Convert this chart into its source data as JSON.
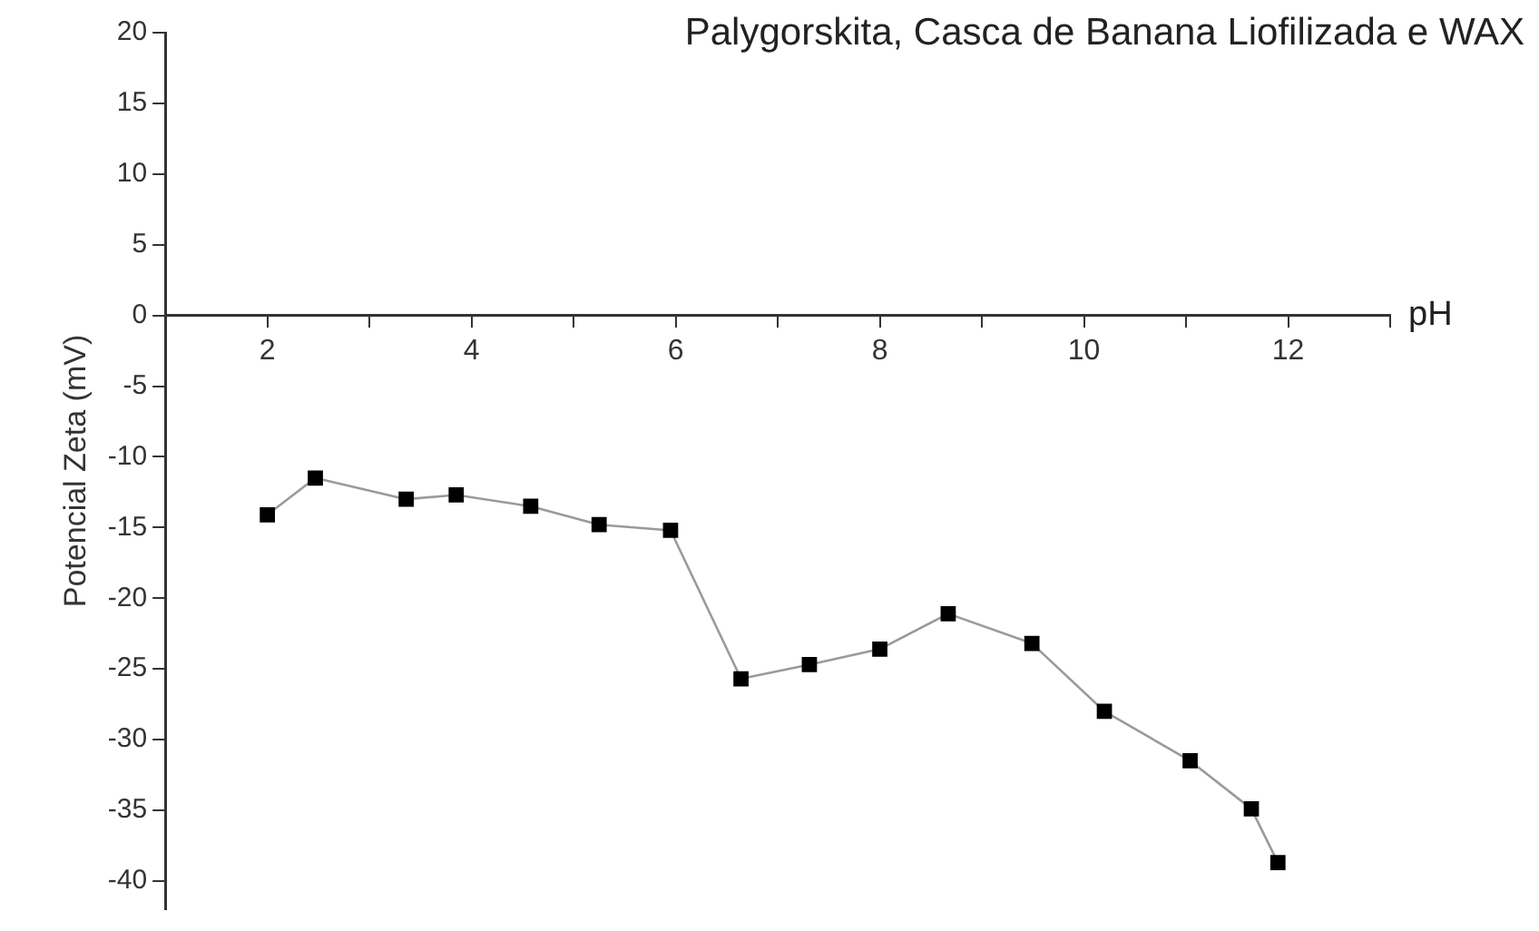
{
  "chart_data": {
    "type": "line",
    "title": "Palygorskita, Casca de Banana Liofilizada e WAX",
    "xlabel": "pH",
    "ylabel": "Potencial Zeta (mV)",
    "x": [
      2.0,
      2.47,
      3.36,
      3.85,
      4.58,
      5.25,
      5.95,
      6.64,
      7.31,
      8.0,
      8.67,
      9.49,
      10.2,
      11.04,
      11.64,
      11.9
    ],
    "series": [
      {
        "color": "#000000",
        "values": [
          -14.1,
          -11.5,
          -13.0,
          -12.7,
          -13.5,
          -14.8,
          -15.2,
          -25.7,
          -24.7,
          -23.6,
          -21.1,
          -23.2,
          -28.0,
          -31.5,
          -34.9,
          -38.7
        ]
      }
    ],
    "xlim": [
      1,
      13
    ],
    "xticks": [
      {
        "value": 1,
        "label": null
      },
      2,
      {
        "value": 3,
        "label": null
      },
      4,
      {
        "value": 5,
        "label": null
      },
      6,
      {
        "value": 7,
        "label": null
      },
      8,
      {
        "value": 9,
        "label": null
      },
      10,
      {
        "value": 11,
        "label": null
      },
      12,
      {
        "value": 13,
        "label": null
      }
    ],
    "ylim": [
      -42,
      20
    ],
    "yticks": [
      -40,
      -35,
      -30,
      -25,
      -20,
      -15,
      -10,
      -5,
      0,
      5,
      10,
      15,
      20
    ],
    "grid": false,
    "legend": false,
    "marker": "square",
    "line_style": "solid"
  }
}
